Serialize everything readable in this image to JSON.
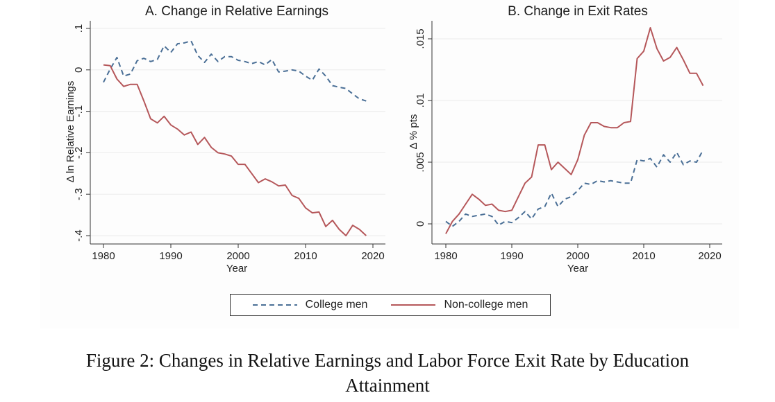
{
  "colors": {
    "college": "#4a6f96",
    "noncollege": "#b5575a",
    "gridline": "#ececec",
    "panel_background": "#fdfdfd"
  },
  "legend": {
    "college_label": "College men",
    "noncollege_label": "Non-college men"
  },
  "caption": {
    "line1": "Figure 2: Changes in Relative Earnings and Labor Force Exit Rate by Education",
    "line2": "Attainment"
  },
  "chart_data": [
    {
      "type": "line",
      "title": "A. Change in Relative Earnings",
      "xlabel": "Year",
      "ylabel": "Δ ln Relative Earnings",
      "xlim": [
        1980,
        2020
      ],
      "ylim": [
        -0.4,
        0.1
      ],
      "xticks": [
        1980,
        1990,
        2000,
        2010,
        2020
      ],
      "xtick_labels": [
        "1980",
        "1990",
        "2000",
        "2010",
        "2020"
      ],
      "yticks": [
        0.1,
        0,
        -0.1,
        -0.2,
        -0.3,
        -0.4
      ],
      "ytick_labels": [
        ".1",
        "0",
        "-.1",
        "-.2",
        "-.3",
        "-.4"
      ],
      "grid": true,
      "legend_position": "bottom",
      "series": [
        {
          "name": "College men",
          "style": "dashed",
          "x": [
            1980,
            1981,
            1982,
            1983,
            1984,
            1985,
            1986,
            1987,
            1988,
            1989,
            1990,
            1991,
            1992,
            1993,
            1994,
            1995,
            1996,
            1997,
            1998,
            1999,
            2000,
            2001,
            2002,
            2003,
            2004,
            2005,
            2006,
            2007,
            2008,
            2009,
            2010,
            2011,
            2012,
            2013,
            2014,
            2015,
            2016,
            2017,
            2018,
            2019
          ],
          "y": [
            -0.03,
            0.002,
            0.03,
            -0.015,
            -0.01,
            0.022,
            0.028,
            0.02,
            0.025,
            0.058,
            0.042,
            0.063,
            0.065,
            0.07,
            0.035,
            0.018,
            0.038,
            0.02,
            0.032,
            0.032,
            0.023,
            0.02,
            0.015,
            0.02,
            0.012,
            0.025,
            -0.005,
            -0.003,
            0.0,
            -0.003,
            -0.015,
            -0.025,
            0.002,
            -0.015,
            -0.038,
            -0.042,
            -0.045,
            -0.058,
            -0.07,
            -0.075
          ]
        },
        {
          "name": "Non-college men",
          "style": "solid",
          "x": [
            1980,
            1981,
            1982,
            1983,
            1984,
            1985,
            1986,
            1987,
            1988,
            1989,
            1990,
            1991,
            1992,
            1993,
            1994,
            1995,
            1996,
            1997,
            1998,
            1999,
            2000,
            2001,
            2002,
            2003,
            2004,
            2005,
            2006,
            2007,
            2008,
            2009,
            2010,
            2011,
            2012,
            2013,
            2014,
            2015,
            2016,
            2017,
            2018,
            2019
          ],
          "y": [
            0.012,
            0.01,
            -0.022,
            -0.04,
            -0.035,
            -0.035,
            -0.075,
            -0.118,
            -0.128,
            -0.112,
            -0.133,
            -0.143,
            -0.157,
            -0.15,
            -0.18,
            -0.163,
            -0.187,
            -0.2,
            -0.203,
            -0.208,
            -0.228,
            -0.228,
            -0.25,
            -0.272,
            -0.263,
            -0.27,
            -0.28,
            -0.278,
            -0.303,
            -0.31,
            -0.333,
            -0.345,
            -0.343,
            -0.378,
            -0.363,
            -0.385,
            -0.4,
            -0.375,
            -0.385,
            -0.4
          ]
        }
      ]
    },
    {
      "type": "line",
      "title": "B. Change in Exit Rates",
      "xlabel": "Year",
      "ylabel": "Δ % pts",
      "xlim": [
        1980,
        2020
      ],
      "ylim": [
        0,
        0.015
      ],
      "xticks": [
        1980,
        1990,
        2000,
        2010,
        2020
      ],
      "xtick_labels": [
        "1980",
        "1990",
        "2000",
        "2010",
        "2020"
      ],
      "yticks": [
        0,
        0.005,
        0.01,
        0.015
      ],
      "ytick_labels": [
        "0",
        ".005",
        ".01",
        ".015"
      ],
      "grid": true,
      "legend_position": "bottom",
      "series": [
        {
          "name": "College men",
          "style": "dashed",
          "x": [
            1980,
            1981,
            1982,
            1983,
            1984,
            1985,
            1986,
            1987,
            1988,
            1989,
            1990,
            1991,
            1992,
            1993,
            1994,
            1995,
            1996,
            1997,
            1998,
            1999,
            2000,
            2001,
            2002,
            2003,
            2004,
            2005,
            2006,
            2007,
            2008,
            2009,
            2010,
            2011,
            2012,
            2013,
            2014,
            2015,
            2016,
            2017,
            2018,
            2019
          ],
          "y": [
            0.0002,
            -0.0002,
            0.0002,
            0.0008,
            0.0006,
            0.0007,
            0.0008,
            0.0006,
            -0.0001,
            0.0002,
            0.0001,
            0.0005,
            0.001,
            0.0004,
            0.0012,
            0.0014,
            0.0025,
            0.0014,
            0.002,
            0.0022,
            0.0027,
            0.0033,
            0.0032,
            0.0035,
            0.0034,
            0.0035,
            0.0034,
            0.0033,
            0.0033,
            0.0052,
            0.0051,
            0.0053,
            0.0046,
            0.0056,
            0.005,
            0.0058,
            0.0048,
            0.0051,
            0.005,
            0.006
          ]
        },
        {
          "name": "Non-college men",
          "style": "solid",
          "x": [
            1980,
            1981,
            1982,
            1983,
            1984,
            1985,
            1986,
            1987,
            1988,
            1989,
            1990,
            1991,
            1992,
            1993,
            1994,
            1995,
            1996,
            1997,
            1998,
            1999,
            2000,
            2001,
            2002,
            2003,
            2004,
            2005,
            2006,
            2007,
            2008,
            2009,
            2010,
            2011,
            2012,
            2013,
            2014,
            2015,
            2016,
            2017,
            2018,
            2019
          ],
          "y": [
            -0.0008,
            0.0002,
            0.0008,
            0.0016,
            0.0024,
            0.002,
            0.0015,
            0.0016,
            0.0011,
            0.001,
            0.0011,
            0.0022,
            0.0033,
            0.0038,
            0.0064,
            0.0064,
            0.0044,
            0.005,
            0.0045,
            0.004,
            0.0052,
            0.0072,
            0.0082,
            0.0082,
            0.0079,
            0.0078,
            0.0078,
            0.0082,
            0.0083,
            0.0134,
            0.014,
            0.0159,
            0.0142,
            0.0132,
            0.0135,
            0.0143,
            0.0133,
            0.0122,
            0.0122,
            0.0112
          ]
        }
      ]
    }
  ]
}
